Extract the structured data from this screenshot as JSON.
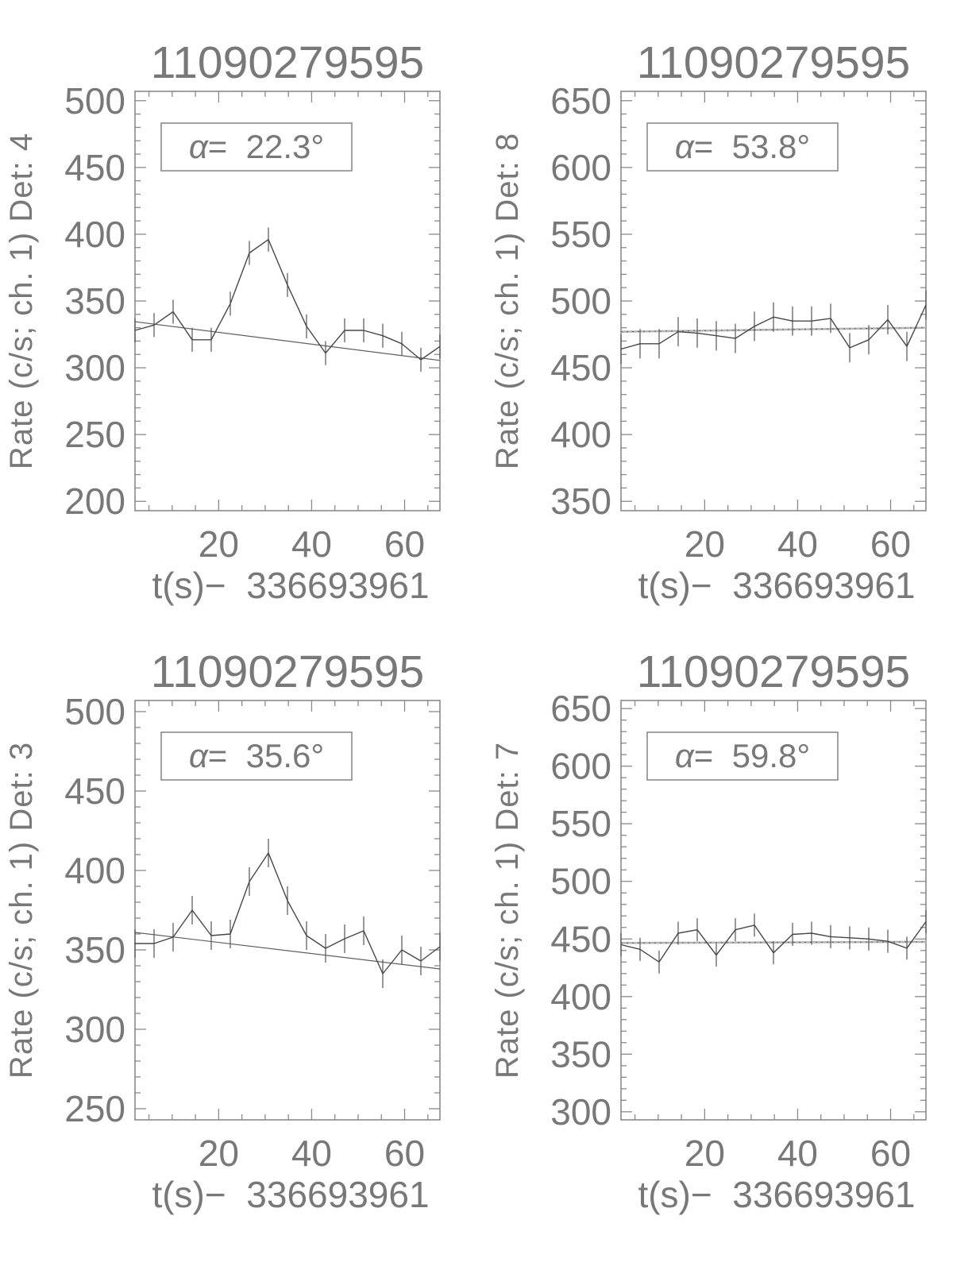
{
  "page": {
    "background": "#ffffff"
  },
  "colors": {
    "text": "#787878",
    "axis": "#8a8a8a",
    "data_line": "#474747",
    "error_bar": "#555555",
    "fit_dark": "#5f5f5f",
    "fit_gray": "#b6b6b6"
  },
  "chart_data": [
    {
      "id": "det4",
      "position": "top-left",
      "type": "line",
      "title": "11090279595",
      "ylabel": "Rate (c/s; ch. 1) Det: 4",
      "xlabel": "t(s)−  336693961",
      "alpha_symbol": "α",
      "alpha_value": "=  22.3°",
      "xlim": [
        2,
        67.6
      ],
      "ylim": [
        193,
        507
      ],
      "yticks": [
        200,
        250,
        300,
        350,
        400,
        450,
        500
      ],
      "xticks": [
        20,
        40,
        60
      ],
      "y_minor_step": 10,
      "x_minor_step": 5,
      "grid": false,
      "x": [
        2,
        6.1,
        10.2,
        14.3,
        18.4,
        22.5,
        26.6,
        30.7,
        34.8,
        38.9,
        43.0,
        47.1,
        51.2,
        55.3,
        59.4,
        63.5,
        67.6
      ],
      "y": [
        328,
        332,
        342,
        321,
        321,
        348,
        386,
        396,
        362,
        331,
        311,
        328,
        328,
        324,
        318,
        306,
        316
      ],
      "yerr": 9,
      "fit": {
        "x": [
          2,
          67.6
        ],
        "y": [
          334.5,
          305.5
        ],
        "style": "dark"
      }
    },
    {
      "id": "det8",
      "position": "top-right",
      "type": "line",
      "title": "11090279595",
      "ylabel": "Rate (c/s; ch. 1) Det: 8",
      "xlabel": "t(s)−  336693961",
      "alpha_symbol": "α",
      "alpha_value": "=  53.8°",
      "xlim": [
        2,
        67.6
      ],
      "ylim": [
        343,
        657
      ],
      "yticks": [
        350,
        400,
        450,
        500,
        550,
        600,
        650
      ],
      "xticks": [
        20,
        40,
        60
      ],
      "y_minor_step": 10,
      "x_minor_step": 5,
      "grid": false,
      "x": [
        2,
        6.1,
        10.2,
        14.3,
        18.4,
        22.5,
        26.6,
        30.7,
        34.8,
        38.9,
        43.0,
        47.1,
        51.2,
        55.3,
        59.4,
        63.5,
        67.6
      ],
      "y": [
        464,
        468,
        468,
        477,
        476,
        474,
        472,
        481,
        488,
        485,
        485,
        487,
        465,
        471,
        486,
        466,
        497
      ],
      "yerr": 11,
      "fit": {
        "x": [
          2,
          67.6
        ],
        "y": [
          477,
          480
        ],
        "style": "gray"
      }
    },
    {
      "id": "det3",
      "position": "bottom-left",
      "type": "line",
      "title": "11090279595",
      "ylabel": "Rate (c/s; ch. 1) Det: 3",
      "xlabel": "t(s)−  336693961",
      "alpha_symbol": "α",
      "alpha_value": "=  35.6°",
      "xlim": [
        2,
        67.6
      ],
      "ylim": [
        243,
        507
      ],
      "yticks": [
        250,
        300,
        350,
        400,
        450,
        500
      ],
      "xticks": [
        20,
        40,
        60
      ],
      "y_minor_step": 10,
      "x_minor_step": 5,
      "grid": false,
      "x": [
        2,
        6.1,
        10.2,
        14.3,
        18.4,
        22.5,
        26.6,
        30.7,
        34.8,
        38.9,
        43.0,
        47.1,
        51.2,
        55.3,
        59.4,
        63.5,
        67.6
      ],
      "y": [
        354,
        354,
        358,
        375,
        359,
        360,
        393,
        411,
        381,
        359,
        351,
        357,
        362,
        335,
        350,
        343,
        352
      ],
      "yerr": 9,
      "fit": {
        "x": [
          2,
          67.6
        ],
        "y": [
          361,
          338
        ],
        "style": "dark"
      }
    },
    {
      "id": "det7",
      "position": "bottom-right",
      "type": "line",
      "title": "11090279595",
      "ylabel": "Rate (c/s; ch. 1) Det: 7",
      "xlabel": "t(s)−  336693961",
      "alpha_symbol": "α",
      "alpha_value": "=  59.8°",
      "xlim": [
        2,
        67.6
      ],
      "ylim": [
        293,
        657
      ],
      "yticks": [
        300,
        350,
        400,
        450,
        500,
        550,
        600,
        650
      ],
      "xticks": [
        20,
        40,
        60
      ],
      "y_minor_step": 10,
      "x_minor_step": 5,
      "grid": false,
      "x": [
        2,
        6.1,
        10.2,
        14.3,
        18.4,
        22.5,
        26.6,
        30.7,
        34.8,
        38.9,
        43.0,
        47.1,
        51.2,
        55.3,
        59.4,
        63.5,
        67.6
      ],
      "y": [
        445,
        441,
        430,
        455,
        458,
        436,
        458,
        462,
        438,
        454,
        455,
        452,
        451,
        450,
        448,
        442,
        465
      ],
      "yerr": 10,
      "fit": {
        "x": [
          2,
          67.6
        ],
        "y": [
          446.5,
          447.5
        ],
        "style": "gray"
      }
    }
  ]
}
